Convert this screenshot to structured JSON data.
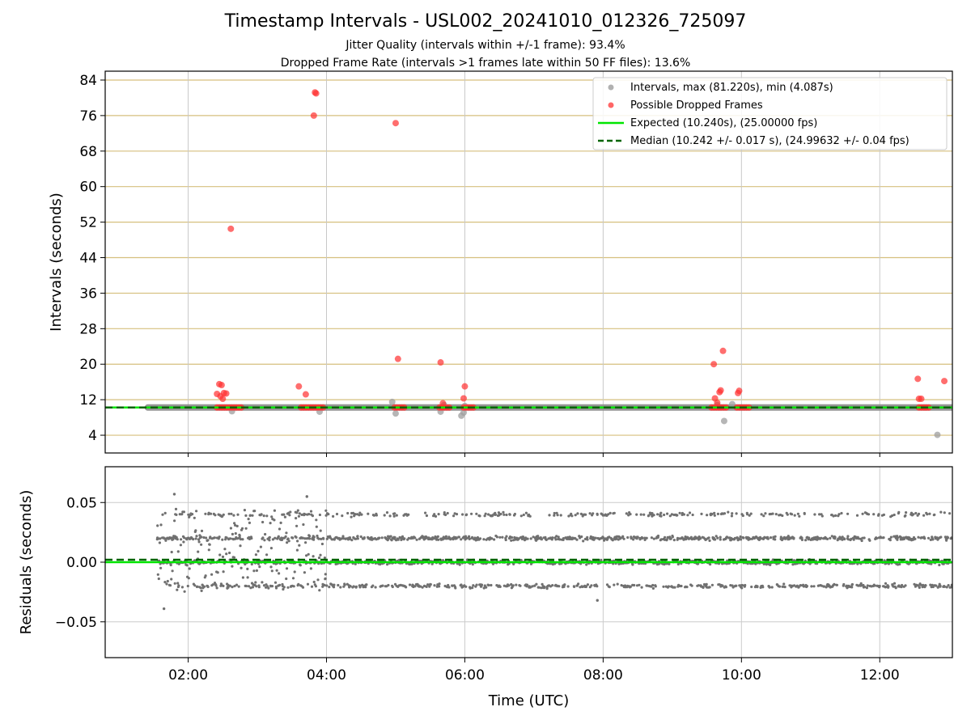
{
  "chart_data": [
    {
      "type": "scatter",
      "title": "Timestamp Intervals - USL002_20241010_012326_725097",
      "subtitle_lines": [
        "Jitter Quality (intervals within +/-1 frame): 93.4%",
        "Dropped Frame Rate (intervals >1 frames late within 50 FF files): 13.6%"
      ],
      "xlabel": "",
      "ylabel": "Intervals (seconds)",
      "x_unit": "time_of_day_utc",
      "xlim": [
        "00:48",
        "13:03"
      ],
      "ylim": [
        0,
        86
      ],
      "yticks": [
        4,
        12,
        20,
        28,
        36,
        44,
        52,
        60,
        68,
        76,
        84
      ],
      "grid": true,
      "grid_color": "#d6bf7e",
      "legend_position": "top-right",
      "legend": [
        {
          "label": "Intervals, max (81.220s), min (4.087s)",
          "marker": "circle",
          "color": "#9e9e9e"
        },
        {
          "label": "Possible Dropped Frames",
          "marker": "circle",
          "color": "#ff4040"
        },
        {
          "label": "Expected (10.240s), (25.00000 fps)",
          "line": "solid",
          "color": "#00e600"
        },
        {
          "label": "Median (10.242 +/- 0.017 s), (24.99632 +/- 0.04 fps)",
          "line": "dashed",
          "color": "#006400"
        }
      ],
      "expected_value": 10.24,
      "median_value": 10.242,
      "series": [
        {
          "name": "Intervals, max (81.220s), min (4.087s)",
          "color": "#808080",
          "band": {
            "x_start": "01:25",
            "x_end": "13:03",
            "y": 10.24
          },
          "x": [
            "02:38",
            "03:54",
            "04:57",
            "05:00",
            "05:39",
            "05:42",
            "05:57",
            "05:59",
            "06:00",
            "09:39",
            "09:45",
            "09:52",
            "12:50"
          ],
          "y": [
            9.4,
            9.3,
            11.5,
            8.9,
            9.3,
            10.8,
            8.4,
            9.1,
            10.6,
            10.8,
            7.2,
            11.0,
            4.087
          ]
        },
        {
          "name": "Possible Dropped Frames",
          "color": "#ff3030",
          "x": [
            "02:25",
            "02:27",
            "02:29",
            "02:31",
            "02:28",
            "02:30",
            "02:33",
            "02:37",
            "03:36",
            "03:42",
            "03:49",
            "03:50",
            "03:51",
            "05:00",
            "05:02",
            "05:39",
            "05:41",
            "05:59",
            "06:00",
            "09:36",
            "09:37",
            "09:39",
            "09:41",
            "09:42",
            "09:44",
            "09:57",
            "09:58",
            "12:33",
            "12:34",
            "12:36",
            "12:56"
          ],
          "y": [
            13.3,
            15.5,
            15.3,
            13.5,
            12.8,
            12.2,
            13.4,
            50.5,
            15.0,
            13.2,
            76.0,
            81.22,
            81.0,
            74.3,
            21.2,
            20.4,
            11.2,
            12.3,
            15.0,
            20.0,
            12.3,
            11.3,
            13.7,
            14.1,
            23.0,
            13.5,
            14.0,
            16.7,
            12.2,
            12.2,
            16.2
          ],
          "baseline_clusters": [
            {
              "x_start": "02:25",
              "x_end": "02:47",
              "y": 10.24
            },
            {
              "x_start": "03:38",
              "x_end": "03:59",
              "y": 10.24
            },
            {
              "x_start": "04:59",
              "x_end": "05:09",
              "y": 10.24
            },
            {
              "x_start": "05:38",
              "x_end": "05:47",
              "y": 10.24
            },
            {
              "x_start": "05:59",
              "x_end": "06:08",
              "y": 10.24
            },
            {
              "x_start": "09:34",
              "x_end": "09:47",
              "y": 10.24
            },
            {
              "x_start": "09:56",
              "x_end": "10:07",
              "y": 10.24
            },
            {
              "x_start": "12:34",
              "x_end": "12:44",
              "y": 10.24
            }
          ]
        }
      ]
    },
    {
      "type": "scatter",
      "xlabel": "Time (UTC)",
      "ylabel": "Residuals (seconds)",
      "x_unit": "time_of_day_utc",
      "xlim": [
        "00:48",
        "13:03"
      ],
      "ylim": [
        -0.08,
        0.08
      ],
      "yticks": [
        -0.05,
        0.0,
        0.05
      ],
      "ytick_labels": [
        "−0.05",
        "0.00",
        "0.05"
      ],
      "xticks": [
        "02:00",
        "04:00",
        "06:00",
        "08:00",
        "10:00",
        "12:00"
      ],
      "grid": true,
      "grid_color": "#cccccc",
      "series": [
        {
          "name": "Residuals",
          "color": "#707070",
          "x_range": [
            "01:33",
            "13:03"
          ],
          "bands": [
            -0.02,
            0.0,
            0.02,
            0.04
          ],
          "noisy_until": "04:00",
          "extremes": {
            "x": [
              "01:39",
              "01:48",
              "03:43",
              "07:55"
            ],
            "y": [
              -0.039,
              0.057,
              0.055,
              -0.032
            ]
          }
        }
      ],
      "reference_lines": [
        {
          "name": "Expected",
          "y": 0.0,
          "color": "#00e600",
          "style": "solid"
        },
        {
          "name": "Median",
          "y": 0.002,
          "color": "#006400",
          "style": "dashed"
        }
      ]
    }
  ]
}
